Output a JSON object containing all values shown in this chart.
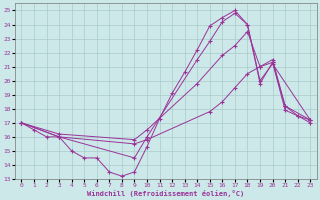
{
  "xlabel": "Windchill (Refroidissement éolien,°C)",
  "xlim": [
    -0.5,
    23.5
  ],
  "ylim": [
    13,
    25.5
  ],
  "xticks": [
    0,
    1,
    2,
    3,
    4,
    5,
    6,
    7,
    8,
    9,
    10,
    11,
    12,
    13,
    14,
    15,
    16,
    17,
    18,
    19,
    20,
    21,
    22,
    23
  ],
  "yticks": [
    13,
    14,
    15,
    16,
    17,
    18,
    19,
    20,
    21,
    22,
    23,
    24,
    25
  ],
  "bg_color": "#cce8e8",
  "line_color": "#993399",
  "grid_color": "#aacccc",
  "lines": [
    {
      "comment": "sharp triangle line - peaks at x=17 (25), drops at x=18 (24), then goes to x=19(20), x=20(21.2), x=21(18), x=22(17.5), x=23(17.2)",
      "x": [
        0,
        1,
        2,
        3,
        4,
        5,
        6,
        7,
        8,
        9,
        10,
        11,
        12,
        13,
        14,
        15,
        16,
        17,
        18,
        19,
        20,
        21,
        22,
        23
      ],
      "y": [
        17,
        16.5,
        16.0,
        16.0,
        15.0,
        14.5,
        14.5,
        13.5,
        13.2,
        13.5,
        15.3,
        17.3,
        19.1,
        20.6,
        22.2,
        23.9,
        24.5,
        25.0,
        24.0,
        19.8,
        21.3,
        17.9,
        17.5,
        17.2
      ]
    },
    {
      "x": [
        0,
        3,
        9,
        10,
        14,
        15,
        16,
        17,
        18,
        19,
        20,
        23
      ],
      "y": [
        17,
        16.0,
        14.5,
        16.0,
        21.5,
        22.8,
        24.2,
        24.8,
        24.0,
        20.0,
        21.2,
        17.2
      ]
    },
    {
      "x": [
        0,
        3,
        9,
        10,
        14,
        16,
        17,
        18,
        19,
        20,
        21,
        23
      ],
      "y": [
        17,
        16.2,
        15.8,
        16.5,
        19.8,
        21.8,
        22.5,
        23.5,
        21.0,
        21.5,
        18.2,
        17.2
      ]
    },
    {
      "x": [
        0,
        3,
        9,
        10,
        15,
        16,
        17,
        18,
        19,
        20,
        21,
        22,
        23
      ],
      "y": [
        17,
        16.0,
        15.5,
        15.8,
        17.8,
        18.5,
        19.5,
        20.5,
        21.0,
        21.3,
        18.2,
        17.5,
        17.0
      ]
    }
  ]
}
